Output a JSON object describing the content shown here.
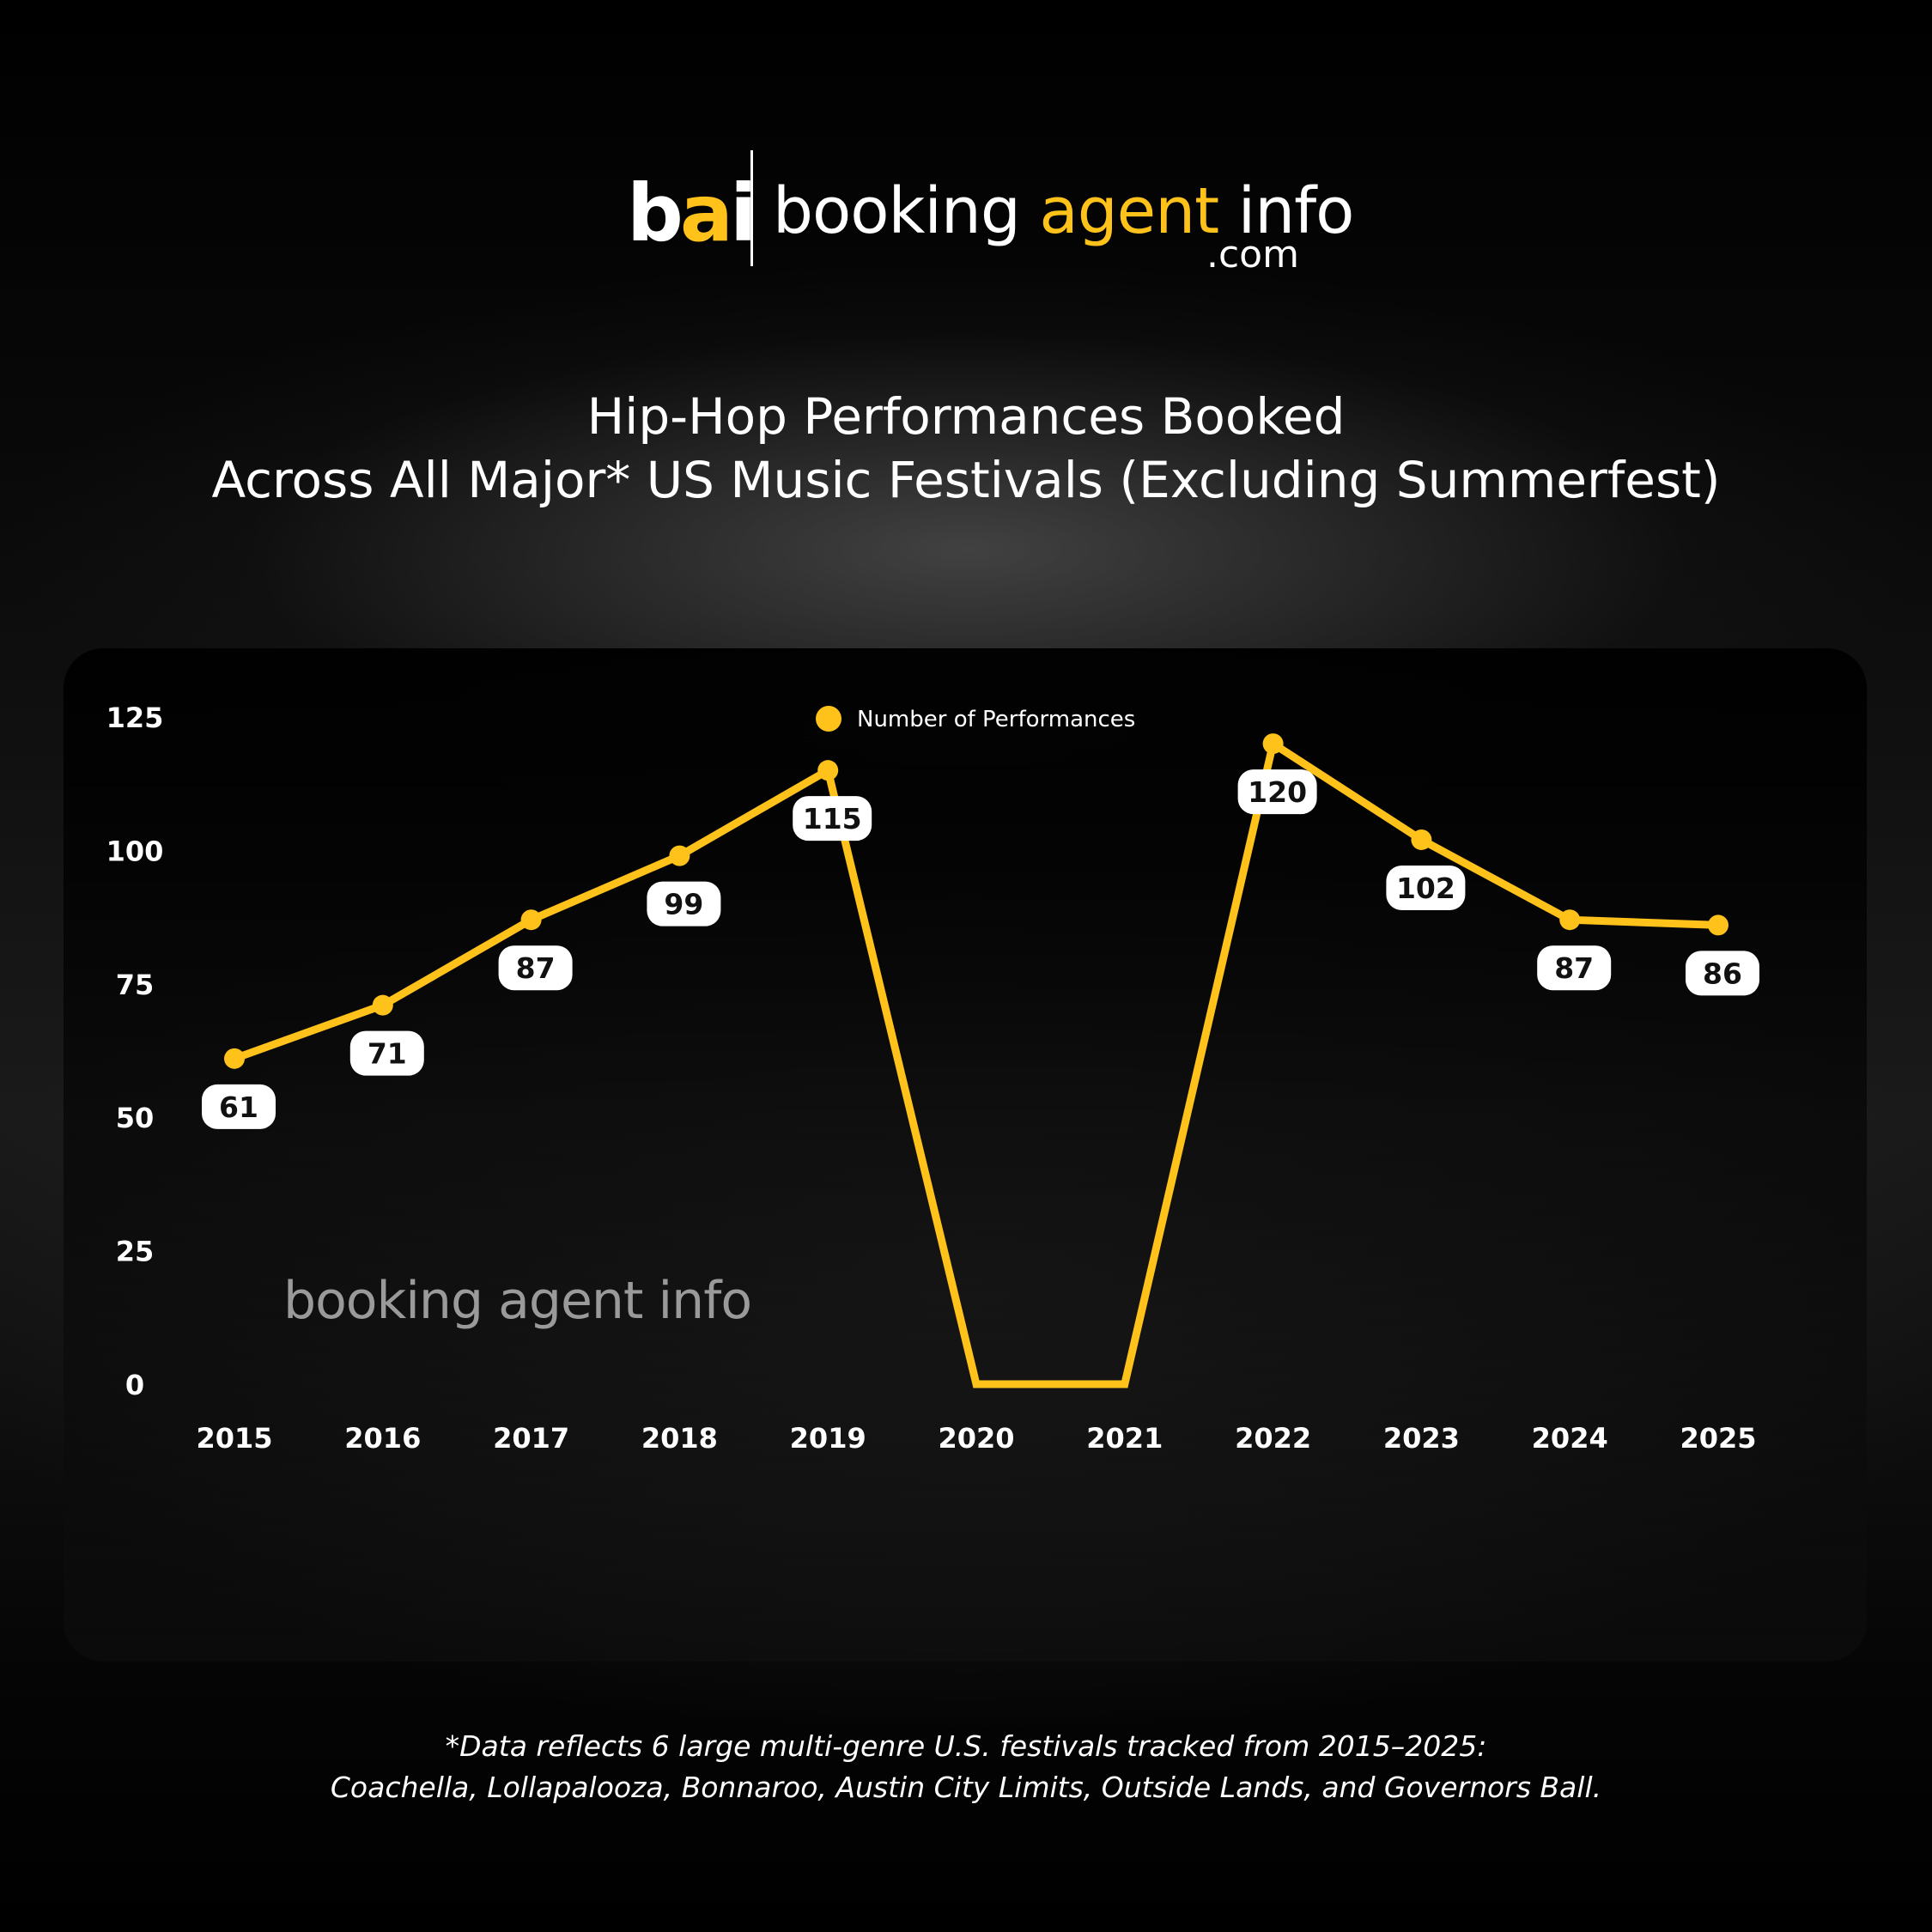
{
  "brand": {
    "mark_b": "b",
    "mark_a": "a",
    "mark_i": "i",
    "name_start": "booking ",
    "name_mid": "agent",
    "name_end": " info",
    "domain": ".com",
    "watermark": "booking agent info"
  },
  "colors": {
    "accent": "#ffc21a",
    "label_bg": "#ffffff",
    "label_text": "#111111"
  },
  "chart_data": {
    "type": "line",
    "title_line1": "Hip-Hop Performances Booked",
    "title_line2": "Across All Major* US Music Festivals (Excluding Summerfest)",
    "categories": [
      "2015",
      "2016",
      "2017",
      "2018",
      "2019",
      "2020",
      "2021",
      "2022",
      "2023",
      "2024",
      "2025"
    ],
    "series": [
      {
        "name": "Number of Performances",
        "values": [
          61,
          71,
          87,
          99,
          115,
          0,
          0,
          120,
          102,
          87,
          86
        ],
        "labels": [
          "61",
          "71",
          "87",
          "99",
          "115",
          "",
          "",
          "120",
          "102",
          "87",
          "86"
        ]
      }
    ],
    "yticks": [
      "0",
      "25",
      "50",
      "75",
      "100",
      "125"
    ],
    "ylim": [
      0,
      125
    ],
    "grid": false,
    "legend_position": "top-center"
  },
  "footnote": {
    "line1": "*Data reflects 6 large multi-genre U.S. festivals tracked from 2015–2025:",
    "line2": "Coachella, Lollapalooza, Bonnaroo, Austin City Limits, Outside Lands, and Governors Ball."
  }
}
